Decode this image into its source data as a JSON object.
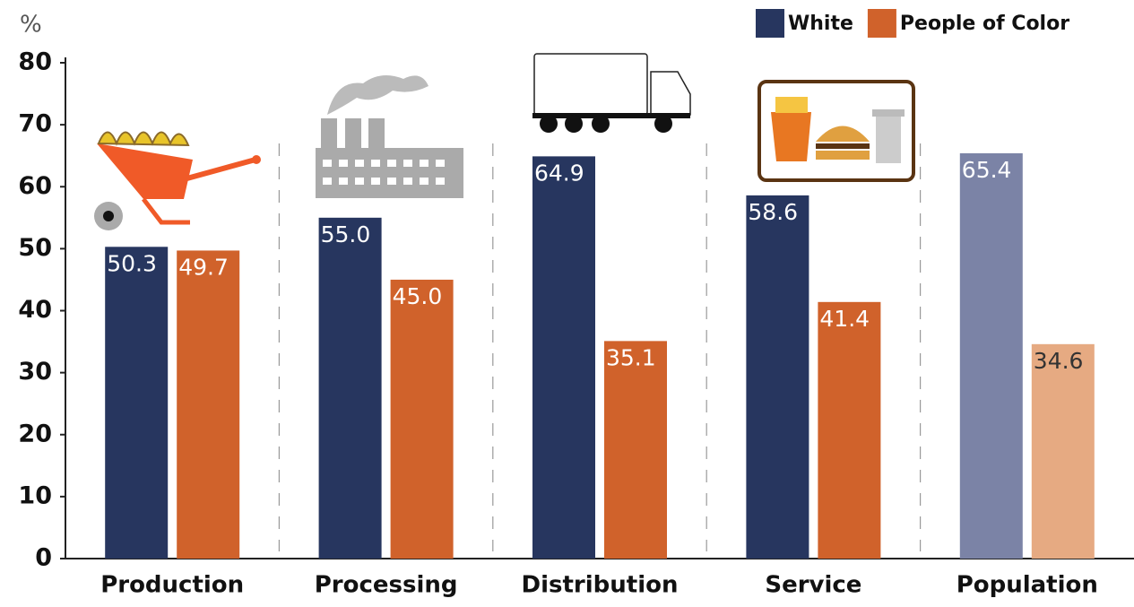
{
  "chart_data": {
    "type": "bar",
    "y_label": "%",
    "categories": [
      "Production",
      "Processing",
      "Distribution",
      "Service",
      "Population"
    ],
    "series": [
      {
        "name": "White",
        "color": "#27365f",
        "colors": [
          "#27365f",
          "#27365f",
          "#27365f",
          "#27365f",
          "#7b83a6"
        ],
        "values": [
          50.3,
          55.0,
          64.9,
          58.6,
          65.4
        ],
        "value_labels": [
          "50.3",
          "55.0",
          "64.9",
          "58.6",
          "65.4"
        ]
      },
      {
        "name": "People of Color",
        "color": "#d0622b",
        "colors": [
          "#d0622b",
          "#d0622b",
          "#d0622b",
          "#d0622b",
          "#e6aa82"
        ],
        "values": [
          49.7,
          45.0,
          35.1,
          41.4,
          34.6
        ],
        "value_labels": [
          "49.7",
          "45.0",
          "35.1",
          "41.4",
          "34.6"
        ]
      }
    ],
    "ylim": [
      0,
      80
    ],
    "yticks": [
      0,
      10,
      20,
      30,
      40,
      50,
      60,
      70,
      80
    ],
    "grid": false,
    "legend": "top-right"
  }
}
